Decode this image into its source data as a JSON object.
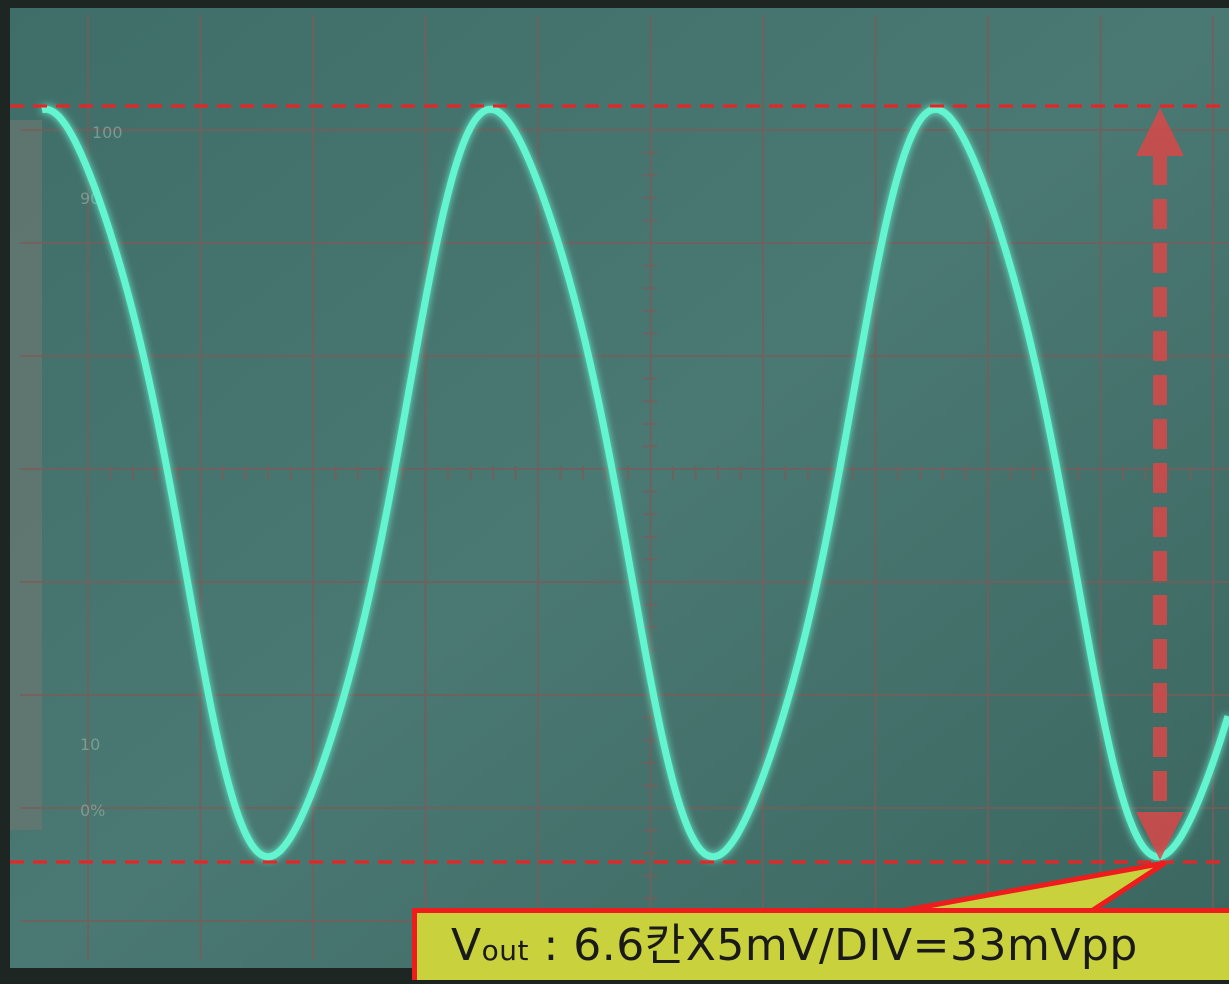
{
  "annotation": {
    "symbol": "V",
    "subscript": "out",
    "text": " : 6.6칸X5mV/DIV=33mVpp"
  },
  "screen_labels": [
    "100",
    "90",
    "10",
    "0%"
  ]
}
